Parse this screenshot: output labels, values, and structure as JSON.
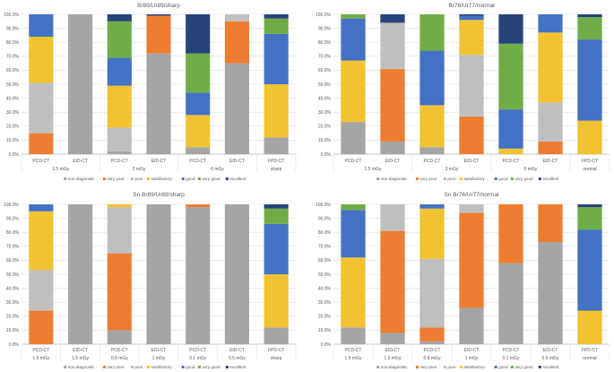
{
  "colors": {
    "non-diagnostic": "#a5a5a5",
    "very poor": "#ed7d31",
    "poor": "#bfbfbf",
    "satisfactory": "#f1c232",
    "good": "#4472c4",
    "very good": "#70ad47",
    "excellent": "#264478"
  },
  "legend": [
    "non-diagnostic",
    "very poor",
    "poor",
    "satisfactory",
    "good",
    "very good",
    "excellent"
  ],
  "chart_data": [
    {
      "type": "bar",
      "stacked": true,
      "title": "Br89/Ur89/sharp",
      "y_ticks": [
        "0.0%",
        "10.0%",
        "20.0%",
        "30.0%",
        "40.0%",
        "50.0%",
        "60.0%",
        "70.0%",
        "80.0%",
        "90.0%",
        "100.0%"
      ],
      "ylim": [
        0,
        100
      ],
      "categories": [
        "PCD-CT",
        "EID-CT",
        "PCD-CT",
        "EID-CT",
        "PCD-CT",
        "EID-CT",
        "FPD-CT"
      ],
      "groups": [
        "1.5 mGy",
        "3 mGy",
        "6 mGy",
        "sharp"
      ],
      "group_spans": [
        [
          0,
          1
        ],
        [
          2,
          3
        ],
        [
          4,
          5
        ],
        [
          6,
          6
        ]
      ],
      "series": [
        {
          "name": "non-diagnostic",
          "values": [
            0,
            100,
            2,
            72,
            5,
            65,
            12
          ]
        },
        {
          "name": "very poor",
          "values": [
            15,
            0,
            0,
            27,
            0,
            30,
            0
          ]
        },
        {
          "name": "poor",
          "values": [
            36,
            0,
            17,
            0,
            0,
            5,
            0
          ]
        },
        {
          "name": "satisfactory",
          "values": [
            33,
            0,
            30,
            0,
            23,
            0,
            38
          ]
        },
        {
          "name": "good",
          "values": [
            16,
            0,
            20,
            0,
            16,
            0,
            36
          ]
        },
        {
          "name": "very good",
          "values": [
            0,
            0,
            26,
            0,
            28,
            0,
            11
          ]
        },
        {
          "name": "excellent",
          "values": [
            0,
            0,
            5,
            1,
            28,
            0,
            3
          ]
        }
      ]
    },
    {
      "type": "bar",
      "stacked": true,
      "title": "Br76/Ur77/normal",
      "y_ticks": [
        "0.0%",
        "10.0%",
        "20.0%",
        "30.0%",
        "40.0%",
        "50.0%",
        "60.0%",
        "70.0%",
        "80.0%",
        "90.0%",
        "100.0%"
      ],
      "ylim": [
        0,
        100
      ],
      "categories": [
        "PCD-CT",
        "EID-CT",
        "PCD-CT",
        "EID-CT",
        "PCD-CT",
        "EID-CT",
        "FPD-CT"
      ],
      "groups": [
        "1.5 mGy",
        "3 mGy",
        "6 mGy",
        "normal"
      ],
      "group_spans": [
        [
          0,
          1
        ],
        [
          2,
          3
        ],
        [
          4,
          5
        ],
        [
          6,
          6
        ]
      ],
      "series": [
        {
          "name": "non-diagnostic",
          "values": [
            23,
            9,
            5,
            0,
            0,
            0,
            0
          ]
        },
        {
          "name": "very poor",
          "values": [
            0,
            52,
            0,
            27,
            0,
            9,
            0
          ]
        },
        {
          "name": "poor",
          "values": [
            0,
            33,
            0,
            44,
            0,
            28,
            0
          ]
        },
        {
          "name": "satisfactory",
          "values": [
            44,
            0,
            30,
            25,
            4,
            50,
            24
          ]
        },
        {
          "name": "good",
          "values": [
            30,
            0,
            39,
            3,
            28,
            13,
            58
          ]
        },
        {
          "name": "very good",
          "values": [
            3,
            0,
            26,
            0,
            47,
            0,
            16
          ]
        },
        {
          "name": "excellent",
          "values": [
            0,
            6,
            0,
            1,
            21,
            0,
            2
          ]
        }
      ]
    },
    {
      "type": "bar",
      "stacked": true,
      "title": "Sn Br89/Ur89/sharp",
      "y_ticks": [
        "0.0%",
        "10.0%",
        "20.0%",
        "30.0%",
        "40.0%",
        "50.0%",
        "60.0%",
        "70.0%",
        "80.0%",
        "90.0%",
        "100.0%"
      ],
      "ylim": [
        0,
        100
      ],
      "categories": [
        "PCD-CT",
        "EID-CT",
        "PCD-CT",
        "EID-CT",
        "PCD-CT",
        "EID-CT",
        "FPD-CT"
      ],
      "groups": [
        "1.5 mGy",
        "1.5 mGy",
        "0.8 mGy",
        "1 mGy",
        "0.1 mGy",
        "0.5 mGy",
        "sharp"
      ],
      "group_spans": [
        [
          0,
          0
        ],
        [
          1,
          1
        ],
        [
          2,
          2
        ],
        [
          3,
          3
        ],
        [
          4,
          4
        ],
        [
          5,
          5
        ],
        [
          6,
          6
        ]
      ],
      "series": [
        {
          "name": "non-diagnostic",
          "values": [
            0,
            100,
            10,
            100,
            98,
            100,
            12
          ]
        },
        {
          "name": "very poor",
          "values": [
            24,
            0,
            55,
            0,
            2,
            0,
            0
          ]
        },
        {
          "name": "poor",
          "values": [
            29,
            0,
            33,
            0,
            0,
            0,
            0
          ]
        },
        {
          "name": "satisfactory",
          "values": [
            42,
            0,
            2,
            0,
            0,
            0,
            38
          ]
        },
        {
          "name": "good",
          "values": [
            5,
            0,
            0,
            0,
            0,
            0,
            36
          ]
        },
        {
          "name": "very good",
          "values": [
            0,
            0,
            0,
            0,
            0,
            0,
            11
          ]
        },
        {
          "name": "excellent",
          "values": [
            0,
            0,
            0,
            0,
            0,
            0,
            3
          ]
        }
      ]
    },
    {
      "type": "bar",
      "stacked": true,
      "title": "Sn Br76/Ur77/normal",
      "y_ticks": [
        "0.0%",
        "10.0%",
        "20.0%",
        "30.0%",
        "40.0%",
        "50.0%",
        "60.0%",
        "70.0%",
        "80.0%",
        "90.0%",
        "100.0%"
      ],
      "ylim": [
        0,
        100
      ],
      "categories": [
        "PCD-CT",
        "EID-CT",
        "PCD-CT",
        "EID-CT",
        "PCD-CT",
        "EID-CT",
        "FPD-CT"
      ],
      "groups": [
        "1.5 mGy",
        "1.5 mGy",
        "0.8 mGy",
        "1 mGy",
        "0.1 mGy",
        "0.5 mGy",
        "normal"
      ],
      "group_spans": [
        [
          0,
          0
        ],
        [
          1,
          1
        ],
        [
          2,
          2
        ],
        [
          3,
          3
        ],
        [
          4,
          4
        ],
        [
          5,
          5
        ],
        [
          6,
          6
        ]
      ],
      "series": [
        {
          "name": "non-diagnostic",
          "values": [
            12,
            8,
            2,
            26,
            58,
            73,
            0
          ]
        },
        {
          "name": "very poor",
          "values": [
            0,
            73,
            10,
            68,
            42,
            27,
            0
          ]
        },
        {
          "name": "poor",
          "values": [
            0,
            19,
            49,
            6,
            0,
            0,
            0
          ]
        },
        {
          "name": "satisfactory",
          "values": [
            50,
            0,
            36,
            0,
            0,
            0,
            24
          ]
        },
        {
          "name": "good",
          "values": [
            34,
            0,
            3,
            0,
            0,
            0,
            58
          ]
        },
        {
          "name": "very good",
          "values": [
            4,
            0,
            0,
            0,
            0,
            0,
            16
          ]
        },
        {
          "name": "excellent",
          "values": [
            0,
            0,
            0,
            0,
            0,
            0,
            2
          ]
        }
      ]
    }
  ]
}
